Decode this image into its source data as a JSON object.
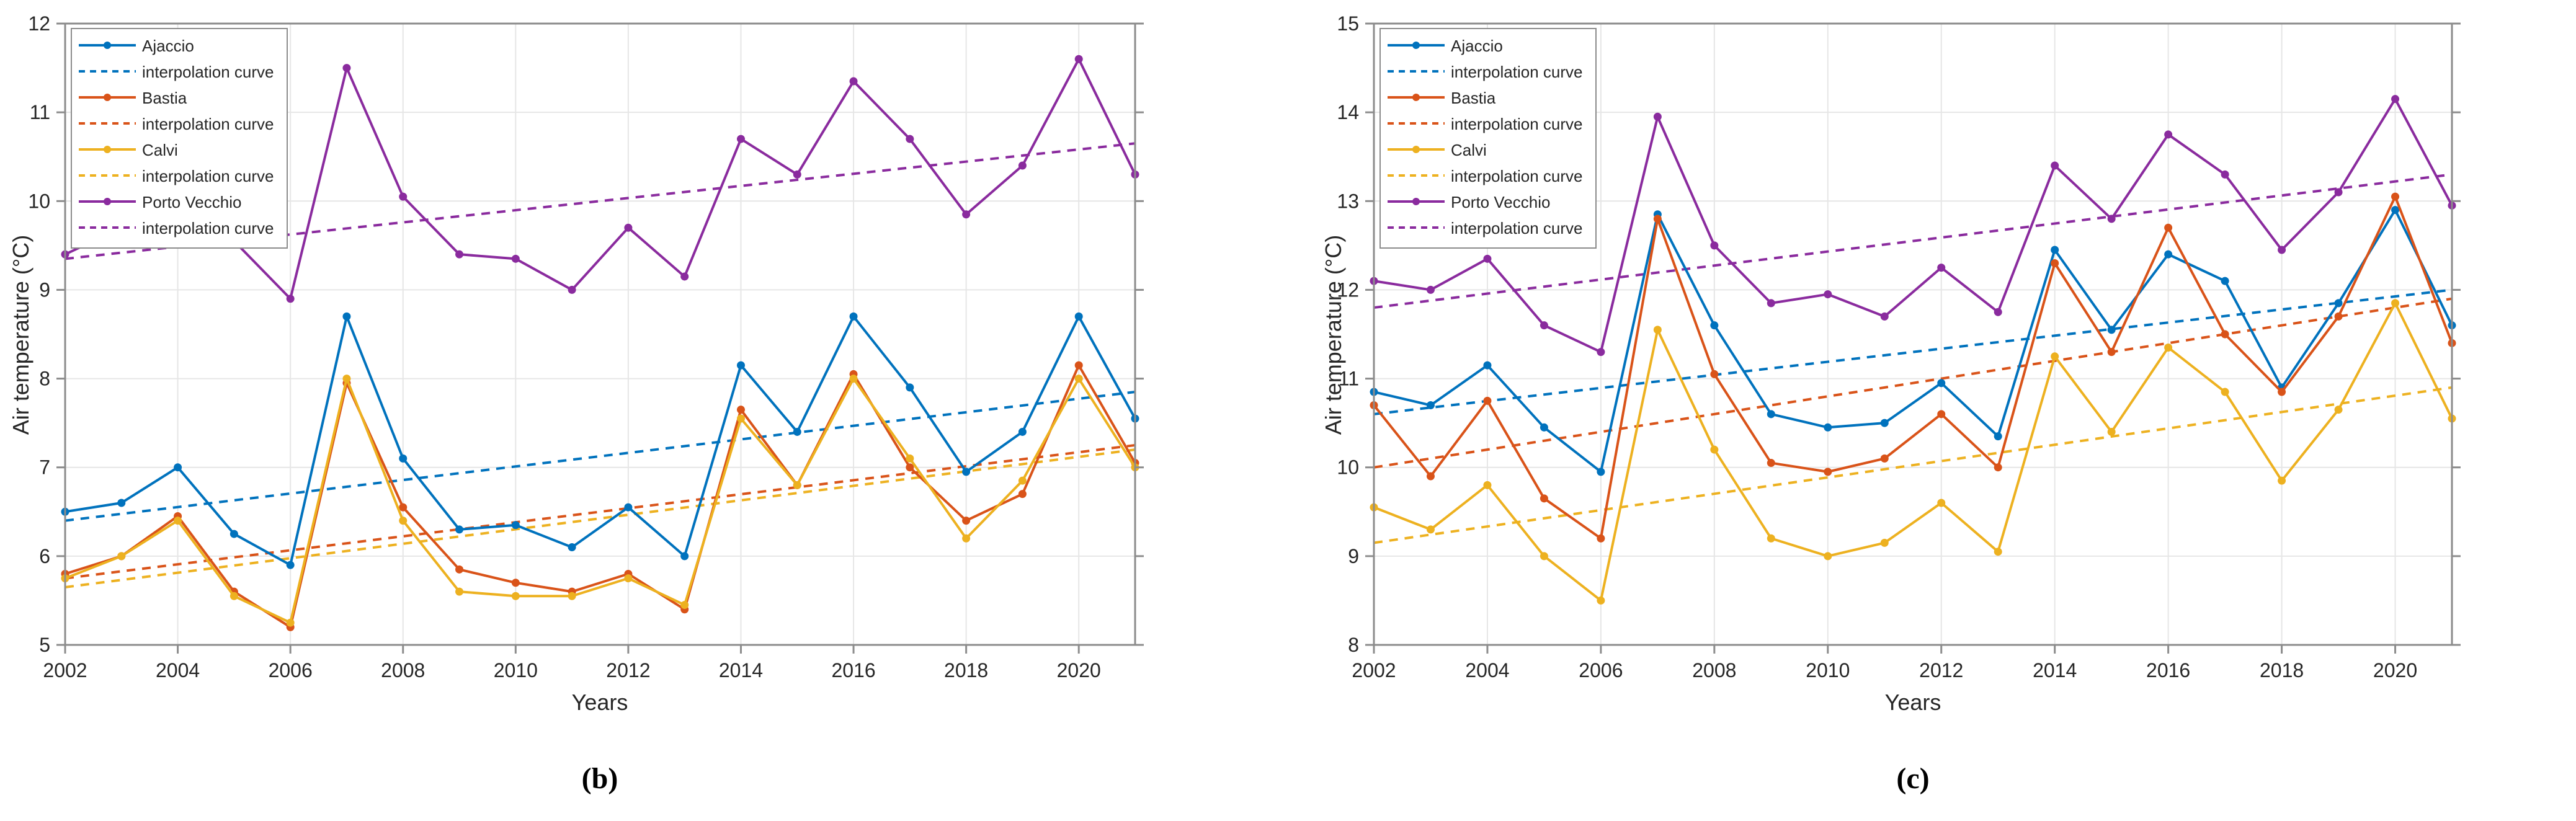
{
  "figure": {
    "ylabel": "Air temperature (°C)",
    "xlabel": "Years",
    "interpolation_label": "interpolation curve",
    "colors": {
      "ajaccio": "#0072BD",
      "bastia": "#D95319",
      "calvi": "#EDB120",
      "porto_vecchio": "#8A2B9E",
      "grid": "#E6E6E6",
      "spine": "#8C8C8C",
      "tick_text": "#262626"
    },
    "captions": {
      "left": "(b)",
      "right": "(c)"
    }
  },
  "chart_data": [
    {
      "type": "line",
      "caption": "(b)",
      "xlabel": "Years",
      "ylabel": "Air temperature (°C)",
      "x": [
        2002,
        2003,
        2004,
        2005,
        2006,
        2007,
        2008,
        2009,
        2010,
        2011,
        2012,
        2013,
        2014,
        2015,
        2016,
        2017,
        2018,
        2019,
        2020,
        2021
      ],
      "xlim": [
        2002,
        2021
      ],
      "ylim": [
        5,
        12
      ],
      "xticks": [
        2002,
        2004,
        2006,
        2008,
        2010,
        2012,
        2014,
        2016,
        2018,
        2020
      ],
      "yticks": [
        5,
        6,
        7,
        8,
        9,
        10,
        11,
        12
      ],
      "grid": true,
      "legend_position": "top-left",
      "series": [
        {
          "name": "Ajaccio",
          "color": "ajaccio",
          "values": [
            6.5,
            6.6,
            7.0,
            6.25,
            5.9,
            8.7,
            7.1,
            6.3,
            6.35,
            6.1,
            6.55,
            6.0,
            8.15,
            7.4,
            8.7,
            7.9,
            6.95,
            7.4,
            8.7,
            7.55
          ],
          "trend": [
            6.4,
            7.85
          ]
        },
        {
          "name": "Bastia",
          "color": "bastia",
          "values": [
            5.8,
            6.0,
            6.45,
            5.6,
            5.2,
            7.95,
            6.55,
            5.85,
            5.7,
            5.6,
            5.8,
            5.4,
            7.65,
            6.8,
            8.05,
            7.0,
            6.4,
            6.7,
            8.15,
            7.05
          ],
          "trend": [
            5.75,
            7.25
          ]
        },
        {
          "name": "Calvi",
          "color": "calvi",
          "values": [
            5.75,
            6.0,
            6.4,
            5.55,
            5.25,
            8.0,
            6.4,
            5.6,
            5.55,
            5.55,
            5.75,
            5.45,
            7.55,
            6.8,
            8.0,
            7.1,
            6.2,
            6.85,
            8.0,
            7.0
          ],
          "trend": [
            5.65,
            7.2
          ]
        },
        {
          "name": "Porto Vecchio",
          "color": "porto_vecchio",
          "values": [
            9.4,
            9.7,
            9.8,
            9.55,
            8.9,
            11.5,
            10.05,
            9.4,
            9.35,
            9.0,
            9.7,
            9.15,
            10.7,
            10.3,
            11.35,
            10.7,
            9.85,
            10.4,
            11.6,
            10.3
          ],
          "trend": [
            9.35,
            10.65
          ]
        }
      ]
    },
    {
      "type": "line",
      "caption": "(c)",
      "xlabel": "Years",
      "ylabel": "Air temperature (°C)",
      "x": [
        2002,
        2003,
        2004,
        2005,
        2006,
        2007,
        2008,
        2009,
        2010,
        2011,
        2012,
        2013,
        2014,
        2015,
        2016,
        2017,
        2018,
        2019,
        2020,
        2021
      ],
      "xlim": [
        2002,
        2021
      ],
      "ylim": [
        8,
        15
      ],
      "xticks": [
        2002,
        2004,
        2006,
        2008,
        2010,
        2012,
        2014,
        2016,
        2018,
        2020
      ],
      "yticks": [
        8,
        9,
        10,
        11,
        12,
        13,
        14,
        15
      ],
      "grid": true,
      "legend_position": "top-left",
      "series": [
        {
          "name": "Ajaccio",
          "color": "ajaccio",
          "values": [
            10.85,
            10.7,
            11.15,
            10.45,
            9.95,
            12.85,
            11.6,
            10.6,
            10.45,
            10.5,
            10.95,
            10.35,
            12.45,
            11.55,
            12.4,
            12.1,
            10.9,
            11.85,
            12.9,
            11.6
          ],
          "trend": [
            10.6,
            12.0
          ]
        },
        {
          "name": "Bastia",
          "color": "bastia",
          "values": [
            10.7,
            9.9,
            10.75,
            9.65,
            9.2,
            12.8,
            11.05,
            10.05,
            9.95,
            10.1,
            10.6,
            10.0,
            12.3,
            11.3,
            12.7,
            11.5,
            10.85,
            11.7,
            13.05,
            11.4
          ],
          "trend": [
            10.0,
            11.9
          ]
        },
        {
          "name": "Calvi",
          "color": "calvi",
          "values": [
            9.55,
            9.3,
            9.8,
            9.0,
            8.5,
            11.55,
            10.2,
            9.2,
            9.0,
            9.15,
            9.6,
            9.05,
            11.25,
            10.4,
            11.35,
            10.85,
            9.85,
            10.65,
            11.85,
            10.55
          ],
          "trend": [
            9.15,
            10.9
          ]
        },
        {
          "name": "Porto Vecchio",
          "color": "porto_vecchio",
          "values": [
            12.1,
            12.0,
            12.35,
            11.6,
            11.3,
            13.95,
            12.5,
            11.85,
            11.95,
            11.7,
            12.25,
            11.75,
            13.4,
            12.8,
            13.75,
            13.3,
            12.45,
            13.1,
            14.15,
            12.95
          ],
          "trend": [
            11.8,
            13.3
          ]
        }
      ]
    }
  ]
}
